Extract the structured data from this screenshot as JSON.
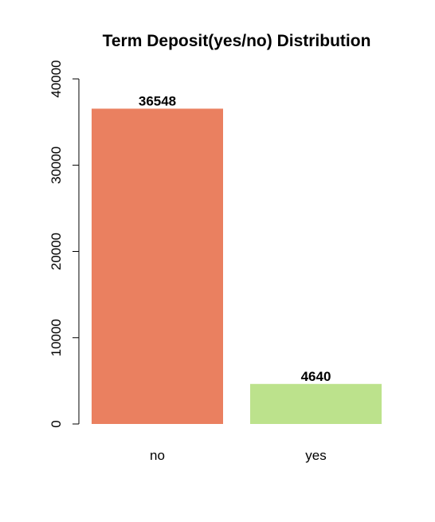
{
  "chart_data": {
    "type": "bar",
    "title": "Term Deposit(yes/no) Distribution",
    "xlabel": "",
    "ylabel": "",
    "categories": [
      "no",
      "yes"
    ],
    "values": [
      36548,
      4640
    ],
    "data_labels": [
      "36548",
      "4640"
    ],
    "colors": [
      "#ea8060",
      "#bce28c"
    ],
    "ylim": [
      0,
      40000
    ],
    "y_ticks": [
      0,
      10000,
      20000,
      30000,
      40000
    ],
    "y_tick_labels": [
      "0",
      "10000",
      "20000",
      "30000",
      "40000"
    ],
    "grid": false,
    "legend": "none"
  }
}
